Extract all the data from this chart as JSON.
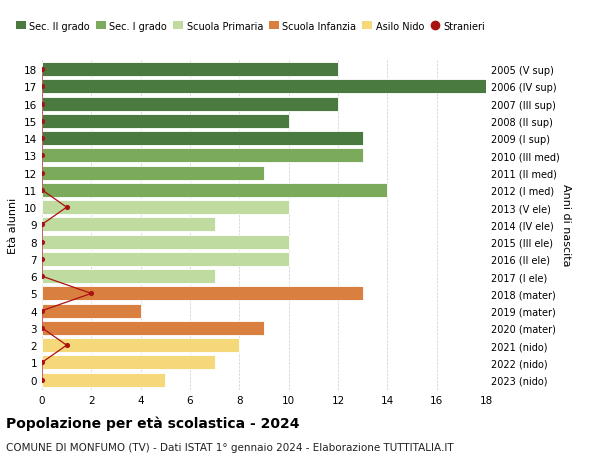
{
  "ages": [
    18,
    17,
    16,
    15,
    14,
    13,
    12,
    11,
    10,
    9,
    8,
    7,
    6,
    5,
    4,
    3,
    2,
    1,
    0
  ],
  "right_labels": [
    "2005 (V sup)",
    "2006 (IV sup)",
    "2007 (III sup)",
    "2008 (II sup)",
    "2009 (I sup)",
    "2010 (III med)",
    "2011 (II med)",
    "2012 (I med)",
    "2013 (V ele)",
    "2014 (IV ele)",
    "2015 (III ele)",
    "2016 (II ele)",
    "2017 (I ele)",
    "2018 (mater)",
    "2019 (mater)",
    "2020 (mater)",
    "2021 (nido)",
    "2022 (nido)",
    "2023 (nido)"
  ],
  "bar_values": [
    12,
    18,
    12,
    10,
    13,
    13,
    9,
    14,
    10,
    7,
    10,
    10,
    7,
    13,
    4,
    9,
    8,
    7,
    5
  ],
  "bar_colors": [
    "#4a7a40",
    "#4a7a40",
    "#4a7a40",
    "#4a7a40",
    "#4a7a40",
    "#7aaa5a",
    "#7aaa5a",
    "#7aaa5a",
    "#c0dba0",
    "#c0dba0",
    "#c0dba0",
    "#c0dba0",
    "#c0dba0",
    "#d98040",
    "#d98040",
    "#d98040",
    "#f5d87a",
    "#f5d87a",
    "#f5d87a"
  ],
  "stranieri_ages": [
    18,
    17,
    16,
    15,
    14,
    13,
    12,
    11,
    10,
    9,
    8,
    7,
    6,
    5,
    4,
    3,
    2,
    1,
    0
  ],
  "stranieri_values": [
    0,
    0,
    0,
    0,
    0,
    0,
    0,
    0,
    1,
    0,
    0,
    0,
    0,
    2,
    0,
    0,
    1,
    0,
    0
  ],
  "legend_labels": [
    "Sec. II grado",
    "Sec. I grado",
    "Scuola Primaria",
    "Scuola Infanzia",
    "Asilo Nido",
    "Stranieri"
  ],
  "legend_colors": [
    "#4a7a40",
    "#7aaa5a",
    "#c0dba0",
    "#d98040",
    "#f5d87a",
    "#aa1111"
  ],
  "title": "Popolazione per età scolastica - 2024",
  "subtitle": "COMUNE DI MONFUMO (TV) - Dati ISTAT 1° gennaio 2024 - Elaborazione TUTTITALIA.IT",
  "ylabel": "Età alunni",
  "right_ylabel": "Anni di nascita",
  "xlim": [
    0,
    18
  ],
  "xticks": [
    0,
    2,
    4,
    6,
    8,
    10,
    12,
    14,
    16,
    18
  ],
  "background_color": "#ffffff",
  "grid_color": "#cccccc"
}
